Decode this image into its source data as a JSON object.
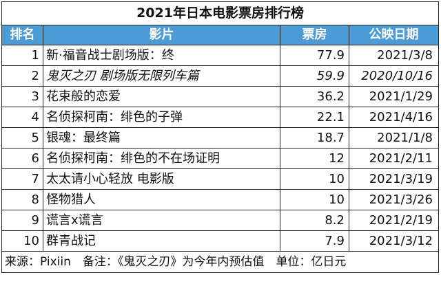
{
  "title": "2021年日本电影票房排行榜",
  "headers": {
    "rank": "排名",
    "film": "影片",
    "box": "票房",
    "date": "公映日期"
  },
  "rows": [
    {
      "rank": "1",
      "film": "新·福音战士剧场版：终",
      "box": "77.9",
      "date": "2021/3/8",
      "italic": false
    },
    {
      "rank": "2",
      "film": "鬼灭之刃 剧场版无限列车篇",
      "box": "59.9",
      "date": "2020/10/16",
      "italic": true
    },
    {
      "rank": "3",
      "film": "花束般的恋爱",
      "box": "36.2",
      "date": "2021/1/29",
      "italic": false
    },
    {
      "rank": "4",
      "film": "名侦探柯南：绯色的子弹",
      "box": "22.1",
      "date": "2021/4/16",
      "italic": false
    },
    {
      "rank": "5",
      "film": "银魂：最终篇",
      "box": "18.7",
      "date": "2021/1/8",
      "italic": false
    },
    {
      "rank": "6",
      "film": "名侦探柯南：绯色的不在场证明",
      "box": "12",
      "date": "2021/2/11",
      "italic": false
    },
    {
      "rank": "7",
      "film": "太太请小心轻放 电影版",
      "box": "10",
      "date": "2021/3/19",
      "italic": false
    },
    {
      "rank": "8",
      "film": "怪物猎人",
      "box": "10",
      "date": "2021/3/26",
      "italic": false
    },
    {
      "rank": "9",
      "film": "谎言x谎言",
      "box": "8.2",
      "date": "2021/2/19",
      "italic": false
    },
    {
      "rank": "10",
      "film": "群青战记",
      "box": "7.9",
      "date": "2021/3/12",
      "italic": false
    }
  ],
  "footer": "来源：Pixiin　备注：《鬼灭之刃》为今年内预估值　单位：亿日元",
  "colors": {
    "header_bg": "#4b9bd6",
    "header_text": "#ffffff",
    "border": "#222222"
  }
}
